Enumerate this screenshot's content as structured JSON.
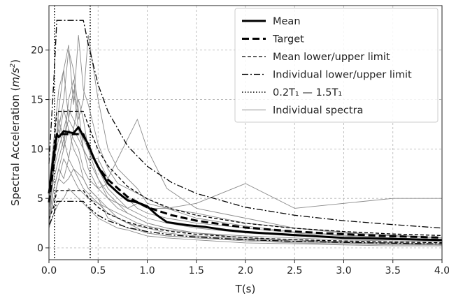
{
  "chart_data": {
    "type": "line",
    "xlabel": "T(s)",
    "ylabel": "Spectral Acceleration (m/s²)",
    "ylabel_parts": {
      "main": "Spectral Acceleration (",
      "unit": "m/s",
      "exp": "2",
      "close": ")"
    },
    "xlim": [
      0,
      4.0
    ],
    "ylim": [
      -1.2,
      24.5
    ],
    "x_ticks": [
      0.0,
      0.5,
      1.0,
      1.5,
      2.0,
      2.5,
      3.0,
      3.5,
      4.0
    ],
    "x_tick_labels": [
      "0.0",
      "0.5",
      "1.0",
      "1.5",
      "2.0",
      "2.5",
      "3.0",
      "3.5",
      "4.0"
    ],
    "y_ticks": [
      0,
      5,
      10,
      15,
      20
    ],
    "y_tick_labels": [
      "0",
      "5",
      "10",
      "15",
      "20"
    ],
    "grid": true,
    "legend_position": "top-right",
    "legend": [
      {
        "label": "Mean",
        "style": "solid-thick"
      },
      {
        "label": "Target",
        "style": "dashed-thick"
      },
      {
        "label": "Mean lower/upper limit",
        "style": "dashed"
      },
      {
        "label": "Individual lower/upper limit",
        "style": "dashdot"
      },
      {
        "label": "0.2T₁ — 1.5T₁",
        "style": "dotted"
      },
      {
        "label": "Individual spectra",
        "style": "thin-gray"
      }
    ],
    "period_limits": [
      0.056,
      0.42
    ],
    "series": [
      {
        "name": "Target",
        "x": [
          0,
          0.05,
          0.08,
          0.1,
          0.15,
          0.2,
          0.3,
          0.35,
          0.4,
          0.5,
          0.6,
          0.8,
          1.0,
          1.25,
          1.5,
          2.0,
          2.5,
          3.0,
          3.5,
          4.0
        ],
        "y": [
          4.6,
          8.5,
          11.5,
          11.5,
          11.5,
          11.5,
          11.5,
          11.5,
          10.3,
          8.2,
          6.9,
          5.15,
          4.1,
          3.3,
          2.75,
          2.05,
          1.65,
          1.37,
          1.17,
          1.03
        ]
      },
      {
        "name": "Mean lower/upper limit",
        "x": [
          0,
          0.05,
          0.08,
          0.35,
          0.4,
          0.5,
          0.6,
          0.8,
          1.0,
          1.25,
          1.5,
          2.0,
          2.5,
          3.0,
          3.5,
          4.0
        ],
        "y": [
          5.5,
          10.2,
          13.8,
          13.8,
          12.4,
          9.9,
          8.3,
          6.2,
          4.95,
          3.95,
          3.3,
          2.48,
          1.98,
          1.65,
          1.4,
          1.24
        ]
      },
      {
        "name": "Mean lower/upper limit",
        "x": [
          0,
          0.05,
          0.08,
          0.35,
          0.4,
          0.5,
          0.6,
          0.8,
          1.0,
          1.25,
          1.5,
          2.0,
          2.5,
          3.0,
          3.5,
          4.0
        ],
        "y": [
          2.9,
          4.2,
          5.8,
          5.8,
          5.1,
          4.1,
          3.45,
          2.6,
          2.05,
          1.65,
          1.37,
          1.03,
          0.82,
          0.69,
          0.58,
          0.52
        ]
      },
      {
        "name": "Individual lower/upper limit",
        "x": [
          0,
          0.05,
          0.08,
          0.35,
          0.4,
          0.5,
          0.6,
          0.8,
          1.0,
          1.25,
          1.5,
          2.0,
          2.5,
          3.0,
          3.5,
          4.0
        ],
        "y": [
          8.5,
          17.0,
          23.0,
          23.0,
          20.6,
          16.5,
          13.8,
          10.3,
          8.25,
          6.6,
          5.5,
          4.1,
          3.3,
          2.75,
          2.35,
          2.0
        ]
      },
      {
        "name": "Individual lower/upper limit",
        "x": [
          0,
          0.05,
          0.08,
          0.35,
          0.4,
          0.5,
          0.6,
          0.8,
          1.0,
          1.25,
          1.5,
          2.0,
          2.5,
          3.0,
          3.5,
          4.0
        ],
        "y": [
          2.3,
          3.4,
          4.7,
          4.7,
          4.1,
          3.3,
          2.75,
          2.05,
          1.65,
          1.3,
          1.1,
          0.82,
          0.66,
          0.55,
          0.47,
          0.41
        ]
      },
      {
        "name": "Mean",
        "x": [
          0,
          0.05,
          0.08,
          0.1,
          0.15,
          0.2,
          0.25,
          0.3,
          0.35,
          0.4,
          0.45,
          0.5,
          0.6,
          0.7,
          0.8,
          0.9,
          1.0,
          1.1,
          1.2,
          1.4,
          1.6,
          1.8,
          2.0,
          2.5,
          3.0,
          3.5,
          4.0
        ],
        "y": [
          5.5,
          9.5,
          11.5,
          11.2,
          11.8,
          11.7,
          11.6,
          12.2,
          11.3,
          10.5,
          9.2,
          8.2,
          6.5,
          5.6,
          4.8,
          4.6,
          4.2,
          3.3,
          2.6,
          2.3,
          2.1,
          1.8,
          1.6,
          1.3,
          1.0,
          0.9,
          0.8
        ]
      },
      {
        "name": "Individual spectra",
        "x": [
          0,
          0.05,
          0.1,
          0.15,
          0.2,
          0.25,
          0.3,
          0.35,
          0.4,
          0.5,
          0.6,
          0.7,
          0.8,
          0.9,
          1.0,
          1.2,
          1.5,
          2.0,
          2.5,
          3.0,
          3.5,
          4.0
        ],
        "y": [
          3.0,
          8.0,
          14.0,
          18.0,
          20.5,
          14.5,
          21.5,
          16.0,
          14.5,
          10.5,
          8.0,
          6.5,
          6.0,
          5.5,
          5.0,
          4.0,
          3.0,
          2.2,
          1.6,
          1.3,
          1.0,
          0.8
        ]
      },
      {
        "name": "Individual spectra",
        "x": [
          0,
          0.05,
          0.1,
          0.15,
          0.2,
          0.25,
          0.3,
          0.35,
          0.4,
          0.5,
          0.6,
          0.7,
          0.8,
          0.9,
          1.0,
          1.2,
          1.5,
          2.0,
          2.5,
          3.0,
          3.5,
          4.0
        ],
        "y": [
          5.0,
          10.0,
          12.0,
          10.0,
          15.0,
          17.0,
          13.0,
          15.0,
          21.5,
          15.0,
          10.0,
          8.0,
          7.0,
          6.0,
          4.5,
          4.0,
          3.5,
          2.5,
          2.0,
          1.5,
          1.3,
          1.0
        ]
      },
      {
        "name": "Individual spectra",
        "x": [
          0,
          0.05,
          0.1,
          0.15,
          0.2,
          0.25,
          0.3,
          0.35,
          0.4,
          0.5,
          0.6,
          0.7,
          0.8,
          0.9,
          1.0,
          1.2,
          1.5,
          2.0,
          2.5,
          3.0,
          3.5,
          4.0
        ],
        "y": [
          4.0,
          8.0,
          13.0,
          11.0,
          9.0,
          12.0,
          11.0,
          10.0,
          9.0,
          9.0,
          7.0,
          9.0,
          11.0,
          13.0,
          10.0,
          6.0,
          4.0,
          3.0,
          2.0,
          1.6,
          1.2,
          1.0
        ]
      },
      {
        "name": "Individual spectra",
        "x": [
          0,
          0.05,
          0.1,
          0.15,
          0.2,
          0.25,
          0.3,
          0.35,
          0.4,
          0.5,
          0.6,
          0.7,
          0.8,
          0.9,
          1.0,
          1.2,
          1.5,
          2.0,
          2.5,
          3.0,
          3.5,
          4.0
        ],
        "y": [
          6.0,
          10.0,
          12.0,
          15.0,
          20.0,
          18.0,
          14.0,
          10.0,
          8.0,
          6.0,
          5.0,
          4.5,
          4.0,
          4.5,
          4.0,
          4.0,
          4.5,
          6.5,
          4.0,
          4.5,
          5.0,
          5.0
        ]
      },
      {
        "name": "Individual spectra",
        "x": [
          0,
          0.05,
          0.1,
          0.15,
          0.2,
          0.25,
          0.3,
          0.35,
          0.4,
          0.5,
          0.6,
          0.7,
          0.8,
          0.9,
          1.0,
          1.2,
          1.5,
          2.0,
          2.5,
          3.0,
          3.5,
          4.0
        ],
        "y": [
          3.0,
          6.0,
          8.0,
          10.0,
          12.0,
          11.0,
          10.0,
          8.0,
          7.0,
          6.0,
          6.5,
          5.5,
          5.0,
          4.0,
          3.5,
          3.0,
          2.5,
          2.0,
          1.5,
          1.2,
          1.0,
          0.8
        ]
      },
      {
        "name": "Individual spectra",
        "x": [
          0,
          0.05,
          0.1,
          0.15,
          0.2,
          0.25,
          0.3,
          0.35,
          0.4,
          0.5,
          0.6,
          0.7,
          0.8,
          0.9,
          1.0,
          1.2,
          1.5,
          2.0,
          2.5,
          3.0,
          3.5,
          4.0
        ],
        "y": [
          2.5,
          5.0,
          7.0,
          9.0,
          8.0,
          7.0,
          6.0,
          5.5,
          5.0,
          4.5,
          4.0,
          3.5,
          3.0,
          2.5,
          2.2,
          1.8,
          1.5,
          1.2,
          1.0,
          0.8,
          0.7,
          0.6
        ]
      },
      {
        "name": "Individual spectra",
        "x": [
          0,
          0.05,
          0.1,
          0.15,
          0.2,
          0.25,
          0.3,
          0.35,
          0.4,
          0.5,
          0.6,
          0.7,
          0.8,
          0.9,
          1.0,
          1.2,
          1.5,
          2.0,
          2.5,
          3.0,
          3.5,
          4.0
        ],
        "y": [
          4.0,
          7.0,
          9.0,
          11.0,
          13.0,
          16.0,
          12.0,
          10.0,
          9.0,
          7.0,
          5.0,
          4.0,
          3.5,
          3.0,
          2.5,
          2.0,
          1.5,
          1.0,
          0.8,
          0.6,
          0.5,
          0.4
        ]
      },
      {
        "name": "Individual spectra",
        "x": [
          0,
          0.05,
          0.1,
          0.15,
          0.2,
          0.25,
          0.3,
          0.35,
          0.4,
          0.5,
          0.6,
          0.7,
          0.8,
          0.9,
          1.0,
          1.2,
          1.5,
          2.0,
          2.5,
          3.0,
          3.5,
          4.0
        ],
        "y": [
          5.0,
          9.0,
          11.0,
          14.0,
          12.0,
          10.0,
          9.0,
          7.0,
          6.0,
          5.0,
          4.0,
          3.0,
          2.5,
          2.0,
          1.5,
          1.2,
          1.0,
          0.8,
          0.6,
          0.5,
          0.4,
          0.3
        ]
      },
      {
        "name": "Individual spectra",
        "x": [
          0,
          0.05,
          0.1,
          0.15,
          0.2,
          0.25,
          0.3,
          0.35,
          0.4,
          0.5,
          0.6,
          0.7,
          0.8,
          0.9,
          1.0,
          1.2,
          1.5,
          2.0,
          2.5,
          3.0,
          3.5,
          4.0
        ],
        "y": [
          3.5,
          6.0,
          8.0,
          7.0,
          9.0,
          8.0,
          7.5,
          7.0,
          6.0,
          5.0,
          3.0,
          2.5,
          2.0,
          1.8,
          1.5,
          1.2,
          1.0,
          0.7,
          0.5,
          0.4,
          0.3,
          0.3
        ]
      },
      {
        "name": "Individual spectra",
        "x": [
          0,
          0.05,
          0.1,
          0.15,
          0.2,
          0.25,
          0.3,
          0.35,
          0.4,
          0.5,
          0.6,
          0.7,
          0.8,
          0.9,
          1.0,
          1.2,
          1.5,
          2.0,
          2.5,
          3.0,
          3.5,
          4.0
        ],
        "y": [
          2.0,
          3.5,
          4.5,
          5.0,
          6.0,
          5.5,
          5.0,
          4.5,
          4.0,
          3.0,
          2.5,
          2.0,
          1.8,
          1.5,
          1.2,
          1.0,
          0.8,
          0.5,
          0.4,
          0.3,
          0.2,
          0.2
        ]
      },
      {
        "name": "Individual spectra",
        "x": [
          0,
          0.05,
          0.1,
          0.15,
          0.2,
          0.25,
          0.3,
          0.35,
          0.4,
          0.5,
          0.6,
          0.7,
          0.8,
          0.9,
          1.0,
          1.2,
          1.5,
          2.0,
          2.5,
          3.0,
          3.5,
          4.0
        ],
        "y": [
          4.5,
          8.0,
          10.0,
          12.0,
          14.0,
          13.0,
          12.0,
          11.0,
          10.0,
          8.0,
          6.0,
          5.0,
          4.0,
          3.5,
          3.0,
          2.5,
          2.0,
          1.5,
          1.2,
          1.0,
          0.8,
          0.7
        ]
      },
      {
        "name": "Individual spectra",
        "x": [
          0,
          0.05,
          0.1,
          0.15,
          0.2,
          0.25,
          0.3,
          0.35,
          0.4,
          0.5,
          0.6,
          0.7,
          0.8,
          0.9,
          1.0,
          1.2,
          1.5,
          2.0,
          2.5,
          3.0,
          3.5,
          4.0
        ],
        "y": [
          6.0,
          11.0,
          16.0,
          18.0,
          13.0,
          12.0,
          15.0,
          13.0,
          10.0,
          7.0,
          5.5,
          4.5,
          3.5,
          3.0,
          2.5,
          2.0,
          1.5,
          1.0,
          0.8,
          0.6,
          0.5,
          0.4
        ]
      },
      {
        "name": "Individual spectra",
        "x": [
          0,
          0.05,
          0.1,
          0.15,
          0.2,
          0.25,
          0.3,
          0.35,
          0.4,
          0.5,
          0.6,
          0.7,
          0.8,
          0.9,
          1.0,
          1.2,
          1.5,
          2.0,
          2.5,
          3.0,
          3.5,
          4.0
        ],
        "y": [
          3.0,
          5.0,
          7.0,
          6.5,
          7.0,
          8.0,
          7.0,
          6.0,
          5.5,
          4.5,
          3.5,
          3.0,
          2.5,
          2.2,
          2.0,
          1.5,
          1.2,
          0.9,
          0.7,
          0.5,
          0.4,
          0.3
        ]
      }
    ]
  }
}
